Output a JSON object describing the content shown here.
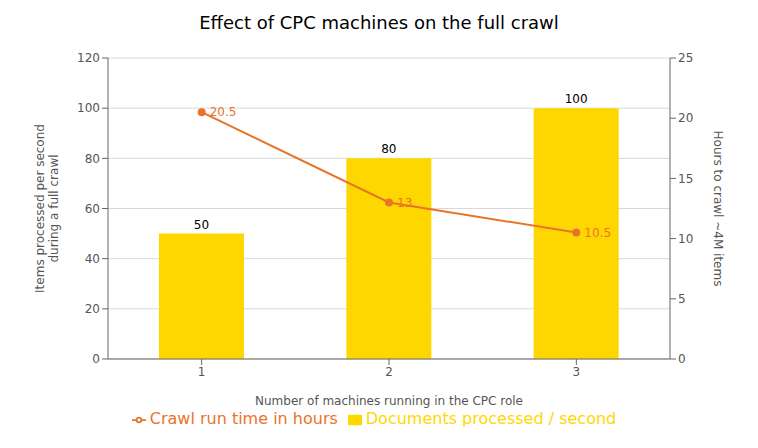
{
  "chart_data": {
    "type": "bar",
    "title": "Effect of CPC machines on the full crawl",
    "xlabel": "Number  of machines running in the CPC role",
    "ylabel": "Items processed per second\nduring a full crawl",
    "y2label": "Hours to crawl ~4M items",
    "x": [
      1,
      2,
      3
    ],
    "xlim": [
      0.5,
      3.5
    ],
    "xticks": [
      1,
      2,
      3
    ],
    "ylim": [
      0,
      120
    ],
    "yticks": [
      0,
      20,
      40,
      60,
      80,
      100,
      120
    ],
    "y2lim": [
      0,
      25
    ],
    "y2ticks": [
      0,
      5,
      10,
      15,
      20,
      25
    ],
    "grid": "y",
    "legend": "bottom",
    "data_labels": true,
    "series": [
      {
        "name": "Documents processed / second",
        "type": "bar",
        "color": "#FFD700",
        "values": [
          50,
          80,
          100
        ]
      },
      {
        "name": "Crawl run time in hours",
        "type": "line",
        "axis": "y2",
        "color": "#E8742A",
        "marker": "circle",
        "values": [
          20.5,
          13,
          10.5
        ]
      }
    ]
  }
}
